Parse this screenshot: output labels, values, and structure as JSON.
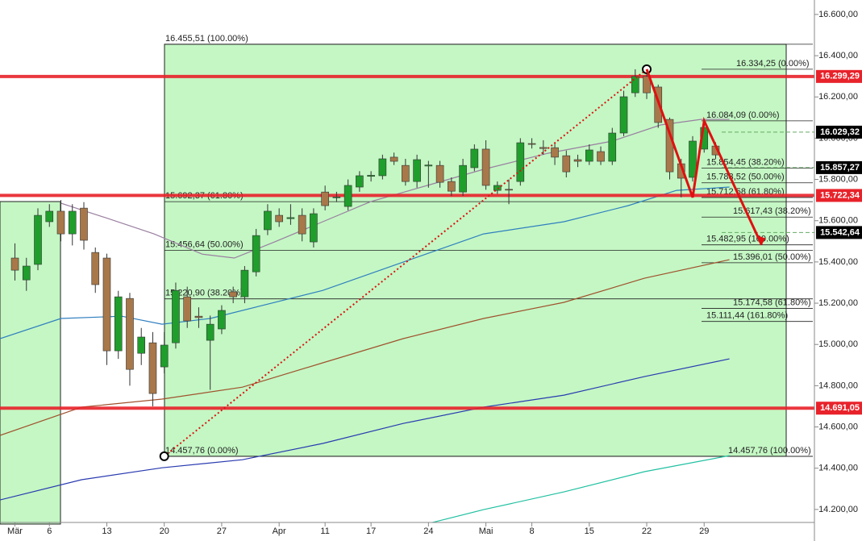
{
  "chart_data": {
    "type": "candlestick",
    "xlim": [
      -1.3,
      69.6
    ],
    "ylim": [
      14047,
      16670
    ],
    "xticks": [
      {
        "value": 0,
        "label": "Mär"
      },
      {
        "value": 3,
        "label": "6"
      },
      {
        "value": 8,
        "label": "13"
      },
      {
        "value": 13,
        "label": "20"
      },
      {
        "value": 18,
        "label": "27"
      },
      {
        "value": 23,
        "label": "Apr"
      },
      {
        "value": 27,
        "label": "11"
      },
      {
        "value": 31,
        "label": "17"
      },
      {
        "value": 36,
        "label": "24"
      },
      {
        "value": 41,
        "label": "Mai"
      },
      {
        "value": 45,
        "label": "8"
      },
      {
        "value": 50,
        "label": "15"
      },
      {
        "value": 55,
        "label": "22"
      },
      {
        "value": 60,
        "label": "29"
      }
    ],
    "yticks": [
      {
        "value": 14200,
        "label": "14.200,00"
      },
      {
        "value": 14400,
        "label": "14.400,00"
      },
      {
        "value": 14600,
        "label": "14.600,00"
      },
      {
        "value": 14800,
        "label": "14.800,00"
      },
      {
        "value": 15000,
        "label": "15.000,00"
      },
      {
        "value": 15200,
        "label": "15.200,00"
      },
      {
        "value": 15400,
        "label": "15.400,00"
      },
      {
        "value": 15600,
        "label": "15.600,00"
      },
      {
        "value": 15800,
        "label": "15.800,00"
      },
      {
        "value": 16000,
        "label": "16.000,00"
      },
      {
        "value": 16200,
        "label": "16.200,00"
      },
      {
        "value": 16400,
        "label": "16.400,00"
      },
      {
        "value": 16600,
        "label": "16.600,00"
      }
    ],
    "up_color": "#1f9e2c",
    "down_color": "#a8784a",
    "open": [
      15419,
      15313,
      15388,
      15595,
      15646,
      15536,
      15661,
      15446,
      15419,
      14969,
      15223,
      14957,
      15008,
      14891,
      15008,
      15231,
      15137,
      15020,
      15075,
      15255,
      15231,
      15352,
      15556,
      15626,
      15610,
      15626,
      15497,
      15739,
      15712,
      15669,
      15763,
      15815,
      15818,
      15908,
      15868,
      15790,
      15865,
      15868,
      15790,
      15739,
      15857,
      15947,
      15747,
      15752,
      15790,
      15974,
      15955,
      15954,
      15915,
      15896,
      15888,
      15935,
      15888,
      16025,
      16220,
      16299,
      16248,
      16091,
      15876,
      15810,
      15947,
      15962
    ],
    "high": [
      15490,
      15420,
      15660,
      15680,
      15700,
      15680,
      15690,
      15470,
      15440,
      15260,
      15250,
      15080,
      15060,
      15060,
      15300,
      15280,
      15180,
      15140,
      15190,
      15280,
      15380,
      15560,
      15680,
      15660,
      15680,
      15660,
      15660,
      15770,
      15740,
      15800,
      15840,
      15840,
      15920,
      15930,
      15900,
      15920,
      15890,
      15890,
      15810,
      15900,
      15970,
      15990,
      15790,
      15800,
      16000,
      16000,
      15990,
      15980,
      15940,
      15920,
      15970,
      15960,
      16050,
      16230,
      16334,
      16330,
      16260,
      16100,
      15900,
      16010,
      16084,
      15980
    ],
    "low": [
      15310,
      15260,
      15360,
      15570,
      15500,
      15480,
      15460,
      15250,
      14900,
      14930,
      14800,
      14900,
      14700,
      14860,
      14980,
      15080,
      15080,
      14780,
      15050,
      15200,
      15200,
      15330,
      15530,
      15570,
      15580,
      15500,
      15470,
      15650,
      15690,
      15650,
      15740,
      15790,
      15800,
      15870,
      15770,
      15760,
      15760,
      15760,
      15720,
      15720,
      15840,
      15750,
      15730,
      15680,
      15770,
      15950,
      15920,
      15870,
      15810,
      15860,
      15870,
      15870,
      15870,
      16010,
      16200,
      16190,
      16050,
      15800,
      15713,
      15790,
      15930,
      15900
    ],
    "close": [
      15360,
      15380,
      15626,
      15646,
      15536,
      15646,
      15505,
      15290,
      14969,
      15231,
      14879,
      15036,
      14762,
      14997,
      15262,
      15114,
      15130,
      15098,
      15165,
      15231,
      15360,
      15528,
      15646,
      15595,
      15615,
      15536,
      15634,
      15673,
      15715,
      15771,
      15818,
      15820,
      15900,
      15888,
      15790,
      15896,
      15870,
      15786,
      15743,
      15868,
      15947,
      15771,
      15771,
      15750,
      15978,
      15970,
      15950,
      15908,
      15837,
      15888,
      15943,
      15888,
      16025,
      16201,
      16299,
      16220,
      16076,
      15837,
      15806,
      15986,
      16052,
      15919
    ],
    "moving_averages": [
      {
        "color": "#9a7fa0",
        "x": [
          4.0,
          7.9,
          12.1,
          16.3,
          19.1,
          22.6,
          26.8,
          31.0,
          35.9,
          40.8,
          46.4,
          52.0,
          56.2,
          59.7,
          62.2
        ],
        "values": [
          15685,
          15614,
          15536,
          15438,
          15419,
          15497,
          15595,
          15693,
          15771,
          15849,
          15927,
          15986,
          16064,
          16091,
          16091
        ]
      },
      {
        "color": "#2f7fbf",
        "x": [
          -1.3,
          4.0,
          9.3,
          12.8,
          17.0,
          21.2,
          26.8,
          33.8,
          40.8,
          47.8,
          53.4,
          57.6,
          62.2
        ],
        "values": [
          15028,
          15126,
          15137,
          15098,
          15126,
          15184,
          15262,
          15399,
          15536,
          15595,
          15673,
          15747,
          15763
        ]
      },
      {
        "color": "#a0522d",
        "x": [
          -1.3,
          5.8,
          12.8,
          19.8,
          26.8,
          33.8,
          40.8,
          47.8,
          54.8,
          62.2
        ],
        "values": [
          14559,
          14696,
          14735,
          14793,
          14911,
          15028,
          15126,
          15204,
          15321,
          15411
        ]
      },
      {
        "color": "#2a3bb0",
        "x": [
          -1.3,
          5.8,
          12.8,
          19.8,
          26.8,
          33.8,
          40.8,
          47.8,
          54.8,
          62.2
        ],
        "values": [
          14246,
          14344,
          14402,
          14441,
          14520,
          14617,
          14696,
          14754,
          14844,
          14930
        ]
      },
      {
        "color": "#20c0a0",
        "x": [
          36.3,
          40.8,
          47.8,
          54.8,
          62.2
        ],
        "values": [
          14136,
          14199,
          14285,
          14383,
          14461
        ]
      }
    ],
    "fib_levels": [
      {
        "value": 16455.51,
        "label": "16.455,51 (100.00%)"
      },
      {
        "value": 16334.25,
        "label": "16.334,25 (0.00%)"
      },
      {
        "value": 16084.09,
        "label": "16.084,09 (0.00%)"
      },
      {
        "value": 15854.45,
        "label": "15.854,45 (38.20%)"
      },
      {
        "value": 15783.52,
        "label": "15.783,52 (50.00%)"
      },
      {
        "value": 15712.58,
        "label": "15.712,58 (61.80%)"
      },
      {
        "value": 15692.37,
        "label": "15.692,37 (61.80%)"
      },
      {
        "value": 15617.43,
        "label": "15.617,43 (38.20%)"
      },
      {
        "value": 15482.95,
        "label": "15.482,95 (100.00%)"
      },
      {
        "value": 15456.64,
        "label": "15.456,64 (50.00%)"
      },
      {
        "value": 15396.01,
        "label": "15.396,01 (50.00%)"
      },
      {
        "value": 15220.9,
        "label": "15.220,90 (38.20%)"
      },
      {
        "value": 15174.58,
        "label": "15.174,58 (61.80%)"
      },
      {
        "value": 15111.44,
        "label": "15.111,44 (161.80%)"
      },
      {
        "value": 14457.76,
        "label": "14.457,76 (0.00%)"
      },
      {
        "value": 14457.76,
        "label": "14.457,76 (100.00%)"
      }
    ],
    "price_markers": [
      {
        "value": 16299.29,
        "label": "16.299,29",
        "color": "#e8222a"
      },
      {
        "value": 16029.32,
        "label": "16.029,32",
        "color": "#000000"
      },
      {
        "value": 15857.27,
        "label": "15.857,27",
        "color": "#000000"
      },
      {
        "value": 15722.34,
        "label": "15.722,34",
        "color": "#e8222a"
      },
      {
        "value": 15542.64,
        "label": "15.542,64",
        "color": "#000000"
      },
      {
        "value": 14691.05,
        "label": "14.691,05",
        "color": "#e8222a"
      }
    ],
    "trend_line": {
      "color": "#dd1111",
      "x": [
        13,
        55
      ],
      "values": [
        14457.76,
        16334.25
      ]
    },
    "zigzag": {
      "color": "#e01010",
      "x": [
        55,
        59,
        60,
        65
      ],
      "values": [
        16334.25,
        15712.58,
        16084.09,
        15482.95
      ]
    }
  }
}
